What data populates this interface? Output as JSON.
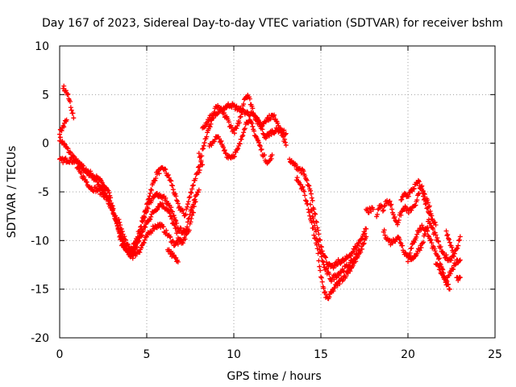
{
  "chart_data": {
    "type": "scatter",
    "title": "Day 167 of 2023, Sidereal Day-to-day VTEC variation (SDTVAR) for receiver bshm",
    "xlabel": "GPS time / hours",
    "ylabel": "SDTVAR / TECUs",
    "xlim": [
      0,
      25
    ],
    "ylim": [
      -20,
      10
    ],
    "xticks": [
      0,
      5,
      10,
      15,
      20,
      25
    ],
    "yticks": [
      -20,
      -15,
      -10,
      -5,
      0,
      5,
      10
    ],
    "grid": true,
    "legend": "none",
    "marker": "+",
    "series": [
      {
        "name": "SDTVAR",
        "color": "#ff0000",
        "tracks": [
          [
            [
              0.0,
              0.5
            ],
            [
              0.4,
              -0.5
            ],
            [
              0.8,
              -1.5
            ],
            [
              1.2,
              -2.3
            ],
            [
              1.6,
              -3.0
            ],
            [
              2.0,
              -3.6
            ],
            [
              2.4,
              -4.6
            ],
            [
              2.8,
              -5.8
            ],
            [
              3.2,
              -7.6
            ],
            [
              3.6,
              -10.0
            ],
            [
              4.0,
              -11.6
            ],
            [
              4.4,
              -10.8
            ],
            [
              4.8,
              -8.0
            ],
            [
              5.2,
              -5.0
            ],
            [
              5.6,
              -3.0
            ],
            [
              6.0,
              -2.6
            ],
            [
              6.4,
              -4.0
            ],
            [
              6.8,
              -6.4
            ],
            [
              7.2,
              -7.4
            ],
            [
              7.6,
              -4.6
            ],
            [
              8.0,
              -2.4
            ]
          ],
          [
            [
              0.0,
              -1.8
            ],
            [
              0.5,
              -1.7
            ],
            [
              1.0,
              -1.9
            ],
            [
              1.5,
              -2.8
            ],
            [
              2.0,
              -3.4
            ],
            [
              2.4,
              -4.0
            ],
            [
              2.8,
              -5.0
            ],
            [
              3.2,
              -7.8
            ],
            [
              3.6,
              -10.6
            ],
            [
              4.0,
              -11.4
            ],
            [
              4.4,
              -10.0
            ],
            [
              4.8,
              -7.6
            ],
            [
              5.2,
              -6.0
            ],
            [
              5.6,
              -5.2
            ],
            [
              6.0,
              -5.6
            ],
            [
              6.4,
              -6.8
            ],
            [
              6.8,
              -8.8
            ],
            [
              7.2,
              -9.2
            ],
            [
              7.6,
              -6.4
            ],
            [
              8.0,
              -4.8
            ]
          ],
          [
            [
              1.0,
              -2.6
            ],
            [
              1.4,
              -3.6
            ],
            [
              1.8,
              -4.6
            ],
            [
              2.2,
              -4.8
            ],
            [
              2.6,
              -5.4
            ],
            [
              3.0,
              -6.8
            ],
            [
              3.4,
              -9.0
            ],
            [
              3.8,
              -10.8
            ],
            [
              4.2,
              -11.0
            ],
            [
              4.6,
              -9.8
            ],
            [
              5.0,
              -8.2
            ],
            [
              5.4,
              -7.0
            ],
            [
              5.8,
              -6.2
            ],
            [
              6.2,
              -6.8
            ],
            [
              6.6,
              -8.6
            ],
            [
              7.0,
              -10.4
            ],
            [
              7.4,
              -9.0
            ],
            [
              7.8,
              -6.0
            ]
          ],
          [
            [
              3.4,
              -8.0
            ],
            [
              3.8,
              -10.2
            ],
            [
              4.2,
              -11.6
            ],
            [
              4.6,
              -11.0
            ],
            [
              5.0,
              -9.6
            ],
            [
              5.4,
              -8.6
            ],
            [
              5.8,
              -8.4
            ],
            [
              6.2,
              -9.4
            ],
            [
              6.6,
              -10.4
            ],
            [
              7.0,
              -10.0
            ]
          ],
          [
            [
              0.2,
              5.8
            ],
            [
              0.4,
              5.2
            ],
            [
              0.6,
              4.2
            ],
            [
              0.8,
              2.6
            ]
          ],
          [
            [
              0.0,
              1.0
            ],
            [
              0.2,
              1.8
            ],
            [
              0.4,
              2.4
            ]
          ],
          [
            [
              6.2,
              -10.8
            ],
            [
              6.6,
              -11.8
            ],
            [
              6.8,
              -12.2
            ]
          ],
          [
            [
              8.0,
              -3.0
            ],
            [
              8.2,
              -0.6
            ],
            [
              8.4,
              0.6
            ],
            [
              8.6,
              1.6
            ],
            [
              8.8,
              2.8
            ],
            [
              9.0,
              3.8
            ],
            [
              9.2,
              3.4
            ],
            [
              9.4,
              3.0
            ],
            [
              9.6,
              2.6
            ],
            [
              9.8,
              1.8
            ],
            [
              10.0,
              1.2
            ],
            [
              10.2,
              1.6
            ],
            [
              10.4,
              2.8
            ],
            [
              10.6,
              4.6
            ],
            [
              10.8,
              5.0
            ],
            [
              11.0,
              4.0
            ],
            [
              11.2,
              2.8
            ],
            [
              11.4,
              2.0
            ],
            [
              11.6,
              1.8
            ],
            [
              11.8,
              2.4
            ],
            [
              12.0,
              2.6
            ],
            [
              12.2,
              2.8
            ],
            [
              12.4,
              2.6
            ],
            [
              12.6,
              1.8
            ],
            [
              12.8,
              0.8
            ],
            [
              13.0,
              -0.2
            ]
          ],
          [
            [
              8.6,
              -0.4
            ],
            [
              8.8,
              0.2
            ],
            [
              9.0,
              0.6
            ],
            [
              9.2,
              0.4
            ],
            [
              9.4,
              -0.6
            ],
            [
              9.6,
              -1.2
            ],
            [
              9.8,
              -1.4
            ],
            [
              10.0,
              -1.2
            ],
            [
              10.2,
              -0.8
            ],
            [
              10.4,
              0.2
            ],
            [
              10.6,
              1.6
            ],
            [
              10.8,
              2.4
            ],
            [
              11.0,
              2.0
            ],
            [
              11.2,
              1.0
            ],
            [
              11.4,
              0.2
            ],
            [
              11.6,
              -0.8
            ],
            [
              11.8,
              -1.6
            ],
            [
              12.0,
              -2.0
            ],
            [
              12.2,
              -1.2
            ]
          ],
          [
            [
              8.2,
              1.4
            ],
            [
              8.6,
              2.6
            ],
            [
              9.0,
              3.0
            ],
            [
              9.4,
              3.6
            ],
            [
              9.8,
              4.0
            ],
            [
              10.2,
              3.6
            ],
            [
              10.6,
              3.2
            ],
            [
              11.0,
              3.0
            ],
            [
              11.4,
              2.4
            ],
            [
              11.8,
              0.6
            ],
            [
              12.2,
              1.2
            ],
            [
              12.6,
              1.4
            ],
            [
              13.0,
              1.0
            ]
          ],
          [
            [
              8.0,
              -1.2
            ],
            [
              8.2,
              -2.2
            ]
          ],
          [
            [
              13.2,
              -1.8
            ],
            [
              13.6,
              -2.4
            ],
            [
              14.0,
              -3.0
            ],
            [
              14.4,
              -5.0
            ],
            [
              14.8,
              -8.6
            ],
            [
              15.0,
              -10.4
            ],
            [
              15.2,
              -11.6
            ],
            [
              15.4,
              -12.4
            ],
            [
              15.6,
              -12.8
            ],
            [
              15.8,
              -12.6
            ],
            [
              16.0,
              -12.2
            ],
            [
              16.4,
              -12.0
            ],
            [
              16.8,
              -11.2
            ],
            [
              17.2,
              -10.2
            ],
            [
              17.6,
              -8.8
            ]
          ],
          [
            [
              13.6,
              -3.6
            ],
            [
              14.0,
              -4.8
            ],
            [
              14.4,
              -7.6
            ],
            [
              14.8,
              -11.0
            ],
            [
              15.0,
              -13.6
            ],
            [
              15.2,
              -15.4
            ],
            [
              15.4,
              -16.0
            ],
            [
              15.6,
              -15.4
            ],
            [
              15.8,
              -14.8
            ],
            [
              16.0,
              -14.4
            ],
            [
              16.4,
              -13.6
            ],
            [
              16.8,
              -12.6
            ],
            [
              17.2,
              -11.4
            ],
            [
              17.6,
              -9.6
            ]
          ],
          [
            [
              14.4,
              -6.4
            ],
            [
              14.8,
              -10.0
            ],
            [
              15.2,
              -12.8
            ],
            [
              15.6,
              -14.0
            ],
            [
              16.0,
              -13.4
            ],
            [
              16.4,
              -12.8
            ],
            [
              16.8,
              -12.2
            ],
            [
              17.2,
              -11.0
            ]
          ],
          [
            [
              18.2,
              -7.4
            ],
            [
              18.4,
              -6.4
            ],
            [
              18.6,
              -6.8
            ],
            [
              18.8,
              -5.8
            ],
            [
              19.0,
              -6.2
            ],
            [
              19.2,
              -7.6
            ],
            [
              19.4,
              -8.2
            ],
            [
              19.6,
              -7.2
            ],
            [
              19.8,
              -6.6
            ],
            [
              20.0,
              -7.0
            ],
            [
              20.2,
              -6.8
            ],
            [
              20.4,
              -6.6
            ],
            [
              20.6,
              -5.0
            ],
            [
              20.8,
              -4.6
            ],
            [
              21.0,
              -5.6
            ],
            [
              21.2,
              -6.4
            ],
            [
              21.4,
              -7.8
            ]
          ],
          [
            [
              18.6,
              -9.0
            ],
            [
              18.8,
              -9.8
            ],
            [
              19.0,
              -10.2
            ],
            [
              19.2,
              -10.0
            ],
            [
              19.4,
              -9.6
            ],
            [
              19.6,
              -10.2
            ],
            [
              19.8,
              -11.2
            ],
            [
              20.0,
              -11.6
            ],
            [
              20.2,
              -10.8
            ],
            [
              20.4,
              -9.8
            ],
            [
              20.6,
              -9.0
            ],
            [
              20.8,
              -8.6
            ],
            [
              21.0,
              -8.8
            ],
            [
              21.2,
              -9.4
            ],
            [
              21.4,
              -10.6
            ],
            [
              21.6,
              -11.4
            ],
            [
              21.8,
              -12.0
            ],
            [
              22.0,
              -13.0
            ],
            [
              22.2,
              -14.2
            ],
            [
              22.4,
              -15.0
            ]
          ],
          [
            [
              20.0,
              -12.0
            ],
            [
              20.4,
              -11.6
            ],
            [
              20.8,
              -10.4
            ],
            [
              21.2,
              -8.0
            ],
            [
              21.6,
              -9.6
            ],
            [
              22.0,
              -11.4
            ],
            [
              22.4,
              -12.0
            ],
            [
              22.8,
              -11.0
            ],
            [
              23.0,
              -9.6
            ]
          ],
          [
            [
              21.6,
              -12.2
            ],
            [
              22.0,
              -13.6
            ],
            [
              22.2,
              -14.4
            ],
            [
              22.4,
              -13.4
            ],
            [
              22.8,
              -12.2
            ],
            [
              23.0,
              -12.0
            ]
          ],
          [
            [
              19.6,
              -6.0
            ],
            [
              19.8,
              -5.2
            ],
            [
              20.0,
              -5.4
            ],
            [
              20.4,
              -4.4
            ],
            [
              20.6,
              -4.0
            ],
            [
              20.8,
              -4.8
            ],
            [
              21.0,
              -6.2
            ],
            [
              21.2,
              -7.0
            ],
            [
              21.4,
              -8.0
            ],
            [
              21.6,
              -8.4
            ]
          ],
          [
            [
              17.6,
              -7.0
            ],
            [
              18.0,
              -6.8
            ]
          ],
          [
            [
              22.8,
              -14.0
            ],
            [
              23.0,
              -13.8
            ]
          ],
          [
            [
              22.2,
              -9.2
            ],
            [
              22.4,
              -10.2
            ],
            [
              22.6,
              -11.2
            ]
          ]
        ]
      }
    ]
  }
}
